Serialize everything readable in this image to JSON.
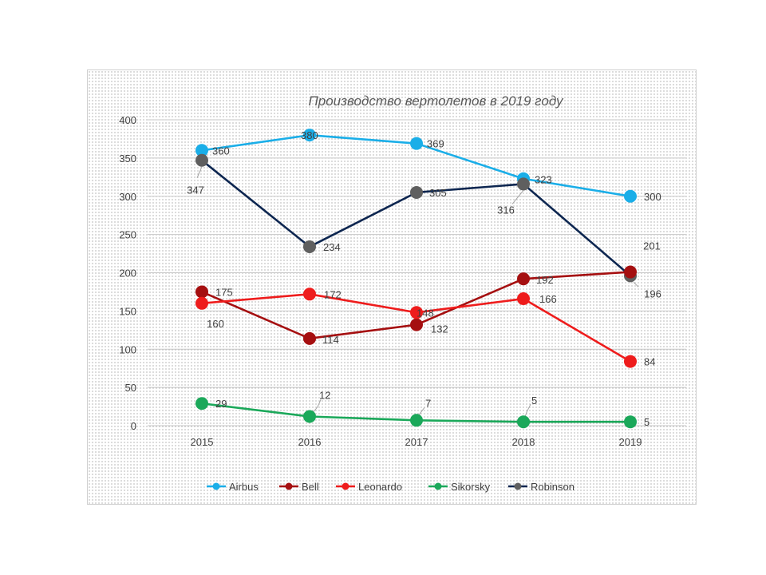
{
  "chart_data": {
    "type": "line",
    "title": "Производство вертолетов в 2019 году",
    "categories": [
      "2015",
      "2016",
      "2017",
      "2018",
      "2019"
    ],
    "ylim": [
      0,
      400
    ],
    "yticks": [
      0,
      50,
      100,
      150,
      200,
      250,
      300,
      350,
      400
    ],
    "grid": true,
    "legend_position": "bottom",
    "series": [
      {
        "name": "Airbus",
        "color": "#1aaee8",
        "values": [
          360,
          380,
          369,
          323,
          300
        ]
      },
      {
        "name": "Bell",
        "color": "#a50f10",
        "values": [
          175,
          114,
          132,
          192,
          201
        ]
      },
      {
        "name": "Leonardo",
        "color": "#ee1c1c",
        "values": [
          160,
          172,
          148,
          166,
          84
        ]
      },
      {
        "name": "Sikorsky",
        "color": "#1ba85a",
        "values": [
          29,
          12,
          7,
          5,
          5
        ]
      },
      {
        "name": "Robinson",
        "color": "#0d2650",
        "marker_color": "#5f5f5f",
        "values": [
          347,
          234,
          305,
          316,
          196
        ]
      }
    ]
  }
}
